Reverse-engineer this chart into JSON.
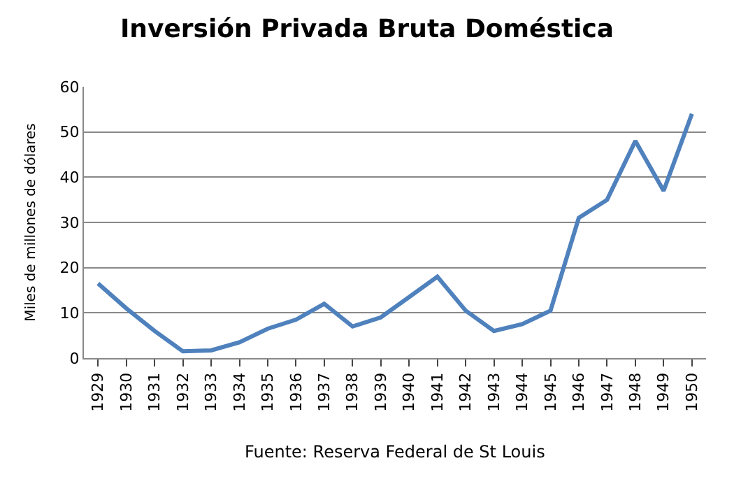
{
  "chart_data": {
    "type": "line",
    "title": "Inversión Privada Bruta Doméstica",
    "ylabel": "Miles de millones de dólares",
    "categories": [
      "1929",
      "1930",
      "1931",
      "1932",
      "1933",
      "1934",
      "1935",
      "1936",
      "1937",
      "1938",
      "1939",
      "1940",
      "1941",
      "1942",
      "1943",
      "1944",
      "1945",
      "1946",
      "1947",
      "1948",
      "1949",
      "1950"
    ],
    "series": [
      {
        "color": "#4f81bd",
        "values": [
          16.5,
          11,
          6,
          1.5,
          1.7,
          3.5,
          6.5,
          8.5,
          12,
          7,
          9,
          13.5,
          18,
          10.5,
          6,
          7.5,
          10.5,
          31,
          35,
          48,
          37,
          54
        ]
      }
    ],
    "ylim": [
      0,
      60
    ],
    "yticks": [
      0,
      10,
      20,
      30,
      40,
      50,
      60
    ],
    "grid": "y",
    "marker": "none",
    "line_style": "solid",
    "annotations": [
      "Fuente: Reserva Federal de St Louis"
    ]
  }
}
